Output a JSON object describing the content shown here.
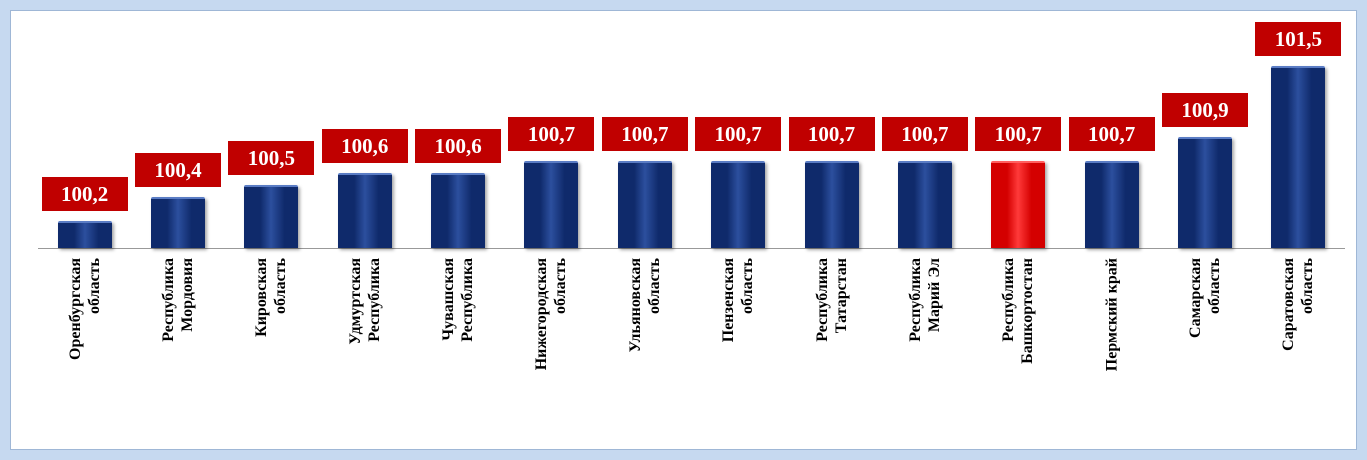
{
  "chart_data": {
    "type": "bar",
    "categories": [
      "Оренбургская\nобласть",
      "Республика\nМордовия",
      "Кировская\nобласть",
      "Удмуртская\nРеспублика",
      "Чувашская\nРеспублика",
      "Нижегородская\nобласть",
      "Ульяновская\nобласть",
      "Пензенская\nобласть",
      "Республика\nТатарстан",
      "Республика\nМарий Эл",
      "Республика\nБашкортостан",
      "Пермский край",
      "Самарская\nобласть",
      "Саратовская\nобласть"
    ],
    "values": [
      100.2,
      100.4,
      100.5,
      100.6,
      100.6,
      100.7,
      100.7,
      100.7,
      100.7,
      100.7,
      100.7,
      100.7,
      100.9,
      101.5
    ],
    "value_labels": [
      "100,2",
      "100,4",
      "100,5",
      "100,6",
      "100,6",
      "100,7",
      "100,7",
      "100,7",
      "100,7",
      "100,7",
      "100,7",
      "100,7",
      "100,9",
      "101,5"
    ],
    "colors": [
      "#0f2a6b",
      "#0f2a6b",
      "#0f2a6b",
      "#0f2a6b",
      "#0f2a6b",
      "#0f2a6b",
      "#0f2a6b",
      "#0f2a6b",
      "#0f2a6b",
      "#0f2a6b",
      "#d40000",
      "#0f2a6b",
      "#0f2a6b",
      "#0f2a6b"
    ],
    "ylim": [
      99.97,
      101.5
    ]
  }
}
